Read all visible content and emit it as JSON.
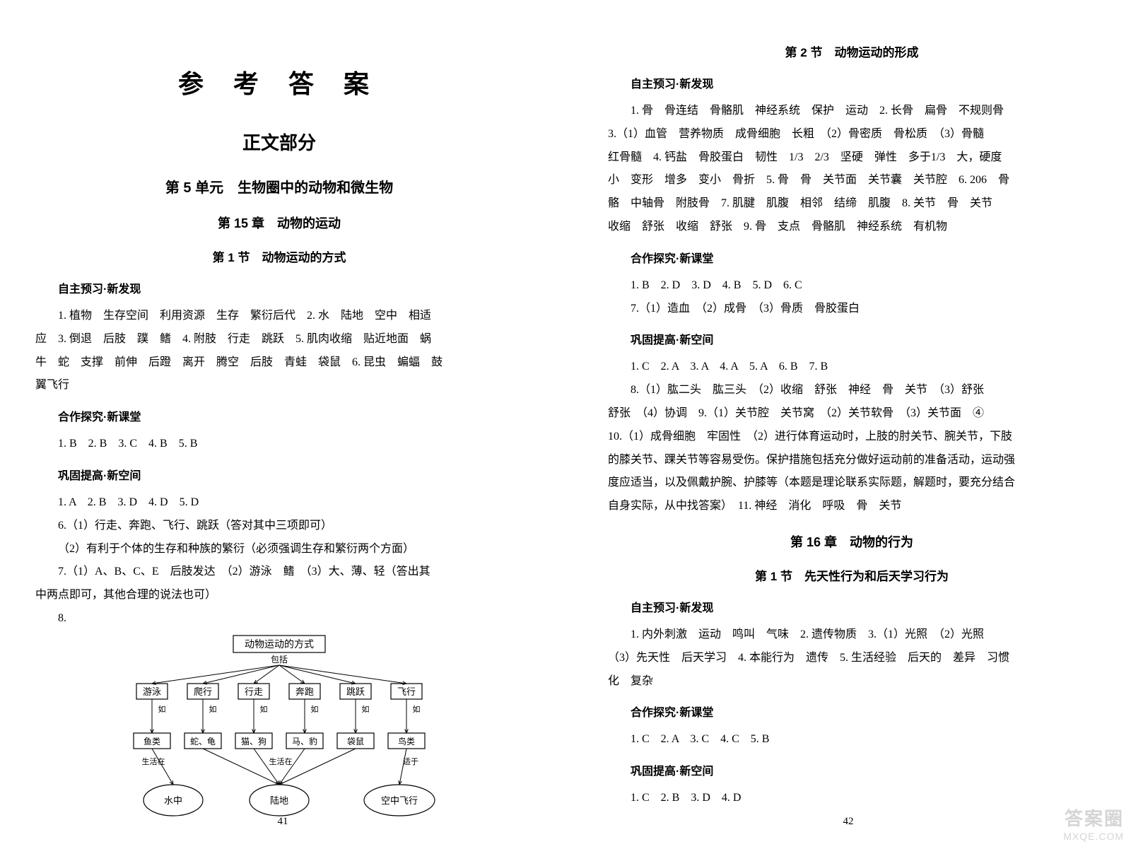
{
  "left_page": {
    "main_title": "参 考 答 案",
    "section_title": "正文部分",
    "unit_title": "第 5 单元　生物圈中的动物和微生物",
    "chapter_title": "第 15 章　动物的运动",
    "node_title": "第 1 节　动物运动的方式",
    "headings": {
      "h1": "自主预习·新发现",
      "h2": "合作探究·新课堂",
      "h3": "巩固提高·新空间"
    },
    "paragraphs": {
      "p1": "1. 植物　生存空间　利用资源　生存　繁衍后代　2. 水　陆地　空中　相适",
      "p1b": "应　3. 倒退　后肢　蹼　鳍　4. 附肢　行走　跳跃　5. 肌肉收缩　贴近地面　蜗",
      "p1c": "牛　蛇　支撑　前伸　后蹬　离开　腾空　后肢　青蛙　袋鼠　6. 昆虫　蝙蝠　鼓",
      "p1d": "翼飞行",
      "p2": "1. B　2. B　3. C　4. B　5. B",
      "p3": "1. A　2. B　3. D　4. D　5. D",
      "p4": "6.（1）行走、奔跑、飞行、跳跃（答对其中三项即可）",
      "p5": "（2）有利于个体的生存和种族的繁衍（必须强调生存和繁衍两个方面）",
      "p6": "7.（1）A、B、C、E　后肢发达　（2）游泳　鳍　（3）大、薄、轻（答出其",
      "p6b": "中两点即可，其他合理的说法也可）",
      "p7": "8."
    },
    "page_number": "41",
    "diagram": {
      "root": "动物运动的方式",
      "root_sub": "包括",
      "methods": [
        "游泳",
        "爬行",
        "行走",
        "奔跑",
        "跳跃",
        "飞行"
      ],
      "example_label": "如",
      "animals": [
        "鱼类",
        "蛇、龟",
        "猫、狗",
        "马、豹",
        "袋鼠",
        "鸟类"
      ],
      "live_label": "生活在",
      "suit_label": "适于",
      "habitats": [
        "水中",
        "陆地",
        "空中飞行"
      ],
      "box_border": "#000000",
      "line_color": "#000000"
    }
  },
  "right_page": {
    "node2_title": "第 2 节　动物运动的形成",
    "chapter16_title": "第 16 章　动物的行为",
    "node16_1_title": "第 1 节　先天性行为和后天学习行为",
    "headings": {
      "h1": "自主预习·新发现",
      "h2": "合作探究·新课堂",
      "h3": "巩固提高·新空间",
      "h4": "自主预习·新发现",
      "h5": "合作探究·新课堂",
      "h6": "巩固提高·新空间"
    },
    "paragraphs": {
      "p1": "1. 骨　骨连结　骨骼肌　神经系统　保护　运动　2. 长骨　扁骨　不规则骨　",
      "p1b": "3.（1）血管　营养物质　成骨细胞　长粗　（2）骨密质　骨松质　（3）骨髓　",
      "p1c": "红骨髓　4. 钙盐　骨胶蛋白　韧性　1/3　2/3　坚硬　弹性　多于1/3　大，硬度",
      "p1d": "小　变形　增多　变小　骨折　5. 骨　骨　关节面　关节囊　关节腔　6. 206　骨",
      "p1e": "骼　中轴骨　附肢骨　7. 肌腱　肌腹　相邻　结缔　肌腹　8. 关节　骨　关节　",
      "p1f": "收缩　舒张　收缩　舒张　9. 骨　支点　骨骼肌　神经系统　有机物",
      "p2": "1. B　2. D　3. D　4. B　5. D　6. C",
      "p3": "7.（1）造血　（2）成骨　（3）骨质　骨胶蛋白",
      "p4": "1. C　2. A　3. A　4. A　5. A　6. B　7. B",
      "p5": "8.（1）肱二头　肱三头　（2）收缩　舒张　神经　骨　关节　（3）舒张　",
      "p5b": "舒张　（4）协调　9.（1）关节腔　关节窝　（2）关节软骨　（3）关节面　④　",
      "p5c": "10.（1）成骨细胞　牢固性　（2）进行体育运动时，上肢的肘关节、腕关节，下肢",
      "p5d": "的膝关节、踝关节等容易受伤。保护措施包括充分做好运动前的准备活动，运动强",
      "p5e": "度应适当，以及佩戴护腕、护膝等（本题是理论联系实际题，解题时，要充分结合",
      "p5f": "自身实际，从中找答案）　11. 神经　消化　呼吸　骨　关节",
      "p6": "1. 内外刺激　运动　鸣叫　气味　2. 遗传物质　3.（1）光照　（2）光照　",
      "p6b": "（3）先天性　后天学习　4. 本能行为　遗传　5. 生活经验　后天的　差异　习惯",
      "p6c": "化　复杂",
      "p7": "1. C　2. A　3. C　4. C　5. B",
      "p8": "1. C　2. B　3. D　4. D"
    },
    "page_number": "42"
  },
  "watermark": {
    "top": "答案圈",
    "bottom": "MXQE.COM"
  }
}
